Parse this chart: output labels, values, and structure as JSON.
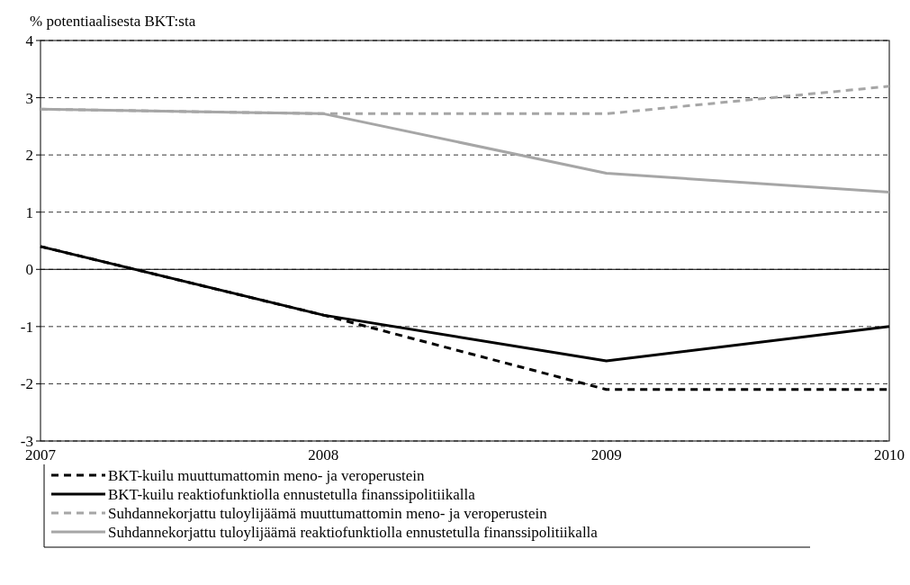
{
  "chart_data": {
    "type": "line",
    "ylabel": "% potentiaalisesta BKT:sta",
    "x": [
      2007,
      2008,
      2009,
      2010
    ],
    "xlim": [
      2007,
      2010
    ],
    "xticks": [
      2007,
      2008,
      2009,
      2010
    ],
    "ylim": [
      -3,
      4
    ],
    "yticks": [
      -3,
      -2,
      -1,
      0,
      1,
      2,
      3,
      4
    ],
    "grid": "y",
    "legend": "bottom",
    "marker": "none",
    "series": [
      {
        "name": "BKT-kuilu muuttumattomin meno- ja veroperustein",
        "color": "#000000",
        "line_style": "dashed",
        "values": [
          0.4,
          -0.8,
          -2.1,
          -2.1
        ]
      },
      {
        "name": "BKT-kuilu reaktiofunktiolla ennustetulla finanssipolitiikalla",
        "color": "#000000",
        "line_style": "solid",
        "values": [
          0.4,
          -0.8,
          -1.6,
          -1.0
        ]
      },
      {
        "name": "Suhdannekorjattu tuloylijäämä muuttumattomin meno- ja veroperustein",
        "color": "#a6a6a6",
        "line_style": "dashed",
        "values": [
          2.8,
          2.72,
          2.72,
          3.2
        ]
      },
      {
        "name": "Suhdannekorjattu tuloylijäämä reaktiofunktiolla ennustetulla finanssipolitiikalla",
        "color": "#a6a6a6",
        "line_style": "solid",
        "values": [
          2.8,
          2.72,
          1.68,
          1.35
        ]
      }
    ]
  }
}
